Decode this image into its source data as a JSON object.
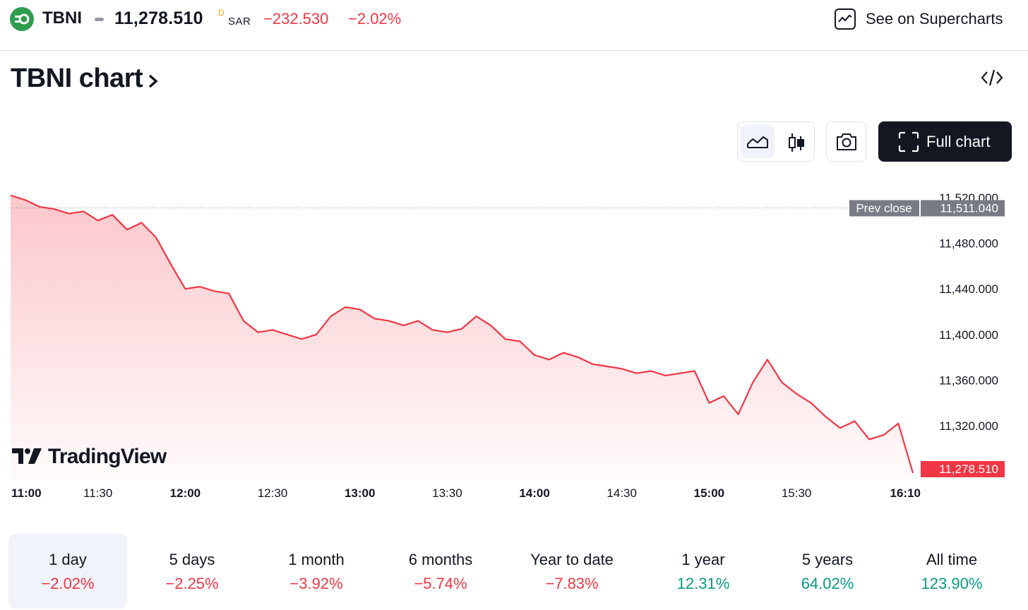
{
  "header": {
    "symbol": "TBNI",
    "price": "11,278.510",
    "flag": "D",
    "currency": "SAR",
    "change": "−232.530",
    "change_pct": "−2.02%",
    "supercharts_label": "See on Supercharts"
  },
  "title": "TBNI chart",
  "toolbar": {
    "full_chart_label": "Full chart"
  },
  "colors": {
    "negative": "#f23645",
    "positive": "#089981",
    "line": "#f23645",
    "dark": "#131722"
  },
  "icons": [
    "logo-icon",
    "supercharts-icon",
    "chevron-right-icon",
    "embed-code-icon",
    "area-chart-icon",
    "candles-icon",
    "camera-icon",
    "fullscreen-icon",
    "tradingview-logo-icon"
  ],
  "watermark": "TradingView",
  "chart_data": {
    "type": "area",
    "x": [
      "11:00",
      "11:05",
      "11:10",
      "11:15",
      "11:20",
      "11:25",
      "11:30",
      "11:35",
      "11:40",
      "11:45",
      "11:50",
      "11:55",
      "12:00",
      "12:05",
      "12:10",
      "12:15",
      "12:20",
      "12:25",
      "12:30",
      "12:35",
      "12:40",
      "12:45",
      "12:50",
      "12:55",
      "13:00",
      "13:05",
      "13:10",
      "13:15",
      "13:20",
      "13:25",
      "13:30",
      "13:35",
      "13:40",
      "13:45",
      "13:50",
      "13:55",
      "14:00",
      "14:05",
      "14:10",
      "14:15",
      "14:20",
      "14:25",
      "14:30",
      "14:35",
      "14:40",
      "14:45",
      "14:50",
      "14:55",
      "15:00",
      "15:05",
      "15:10",
      "15:15",
      "15:20",
      "15:25",
      "15:30",
      "15:35",
      "15:40",
      "15:45",
      "15:50",
      "15:55",
      "16:00",
      "16:05",
      "16:10"
    ],
    "series": [
      {
        "values": [
          11522,
          11518,
          11512,
          11510,
          11506,
          11508,
          11500,
          11505,
          11492,
          11498,
          11485,
          11462,
          11440,
          11442,
          11438,
          11436,
          11412,
          11402,
          11404,
          11400,
          11396,
          11400,
          11416,
          11424,
          11422,
          11414,
          11412,
          11408,
          11412,
          11404,
          11402,
          11405,
          11416,
          11408,
          11396,
          11394,
          11382,
          11378,
          11384,
          11380,
          11374,
          11372,
          11370,
          11366,
          11368,
          11364,
          11366,
          11368,
          11340,
          11346,
          11330,
          11358,
          11378,
          11358,
          11348,
          11340,
          11328,
          11318,
          11324,
          11308,
          11312,
          11322,
          11278.51
        ]
      }
    ],
    "xlabels": [
      "11:00",
      "11:30",
      "12:00",
      "12:30",
      "13:00",
      "13:30",
      "14:00",
      "14:30",
      "15:00",
      "15:30",
      "16:10"
    ],
    "xlabels_bold": [
      "11:00",
      "12:00",
      "13:00",
      "14:00",
      "15:00",
      "16:10"
    ],
    "y_ticks": [
      "11,520.000",
      "11,480.000",
      "11,440.000",
      "11,400.000",
      "11,360.000",
      "11,320.000"
    ],
    "y_tick_values": [
      11520,
      11480,
      11440,
      11400,
      11360,
      11320
    ],
    "prev_close": 11511.04,
    "prev_close_label": "Prev close",
    "prev_close_value": "11,511.040",
    "last_value": "11,278.510",
    "last": 11278.51,
    "ylim": [
      11278.51,
      11520
    ],
    "grid": false
  },
  "ranges": [
    {
      "label": "1 day",
      "value": "−2.02%",
      "dir": "neg",
      "active": true
    },
    {
      "label": "5 days",
      "value": "−2.25%",
      "dir": "neg"
    },
    {
      "label": "1 month",
      "value": "−3.92%",
      "dir": "neg"
    },
    {
      "label": "6 months",
      "value": "−5.74%",
      "dir": "neg"
    },
    {
      "label": "Year to date",
      "value": "−7.83%",
      "dir": "neg"
    },
    {
      "label": "1 year",
      "value": "12.31%",
      "dir": "pos"
    },
    {
      "label": "5 years",
      "value": "64.02%",
      "dir": "pos"
    },
    {
      "label": "All time",
      "value": "123.90%",
      "dir": "pos"
    }
  ]
}
